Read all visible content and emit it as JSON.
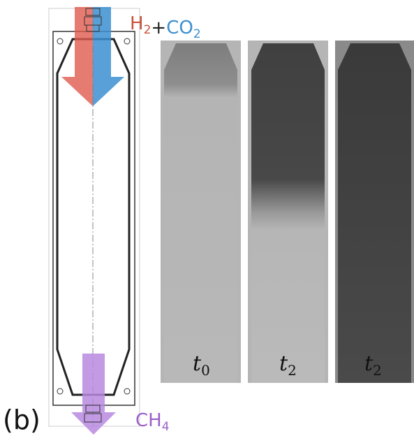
{
  "panel_label": "(b)",
  "inlet": {
    "joiner": "+",
    "species": [
      {
        "base": "H",
        "sub": "2",
        "color": "#c8523c"
      },
      {
        "base": "CO",
        "sub": "2",
        "color": "#3b8fd0"
      }
    ]
  },
  "outlet": {
    "base": "CH",
    "sub": "4",
    "color": "#9b5fc8"
  },
  "images": [
    {
      "time": "t",
      "sub": "0"
    },
    {
      "time": "t",
      "sub": "2"
    },
    {
      "time": "t",
      "sub": "2"
    }
  ]
}
